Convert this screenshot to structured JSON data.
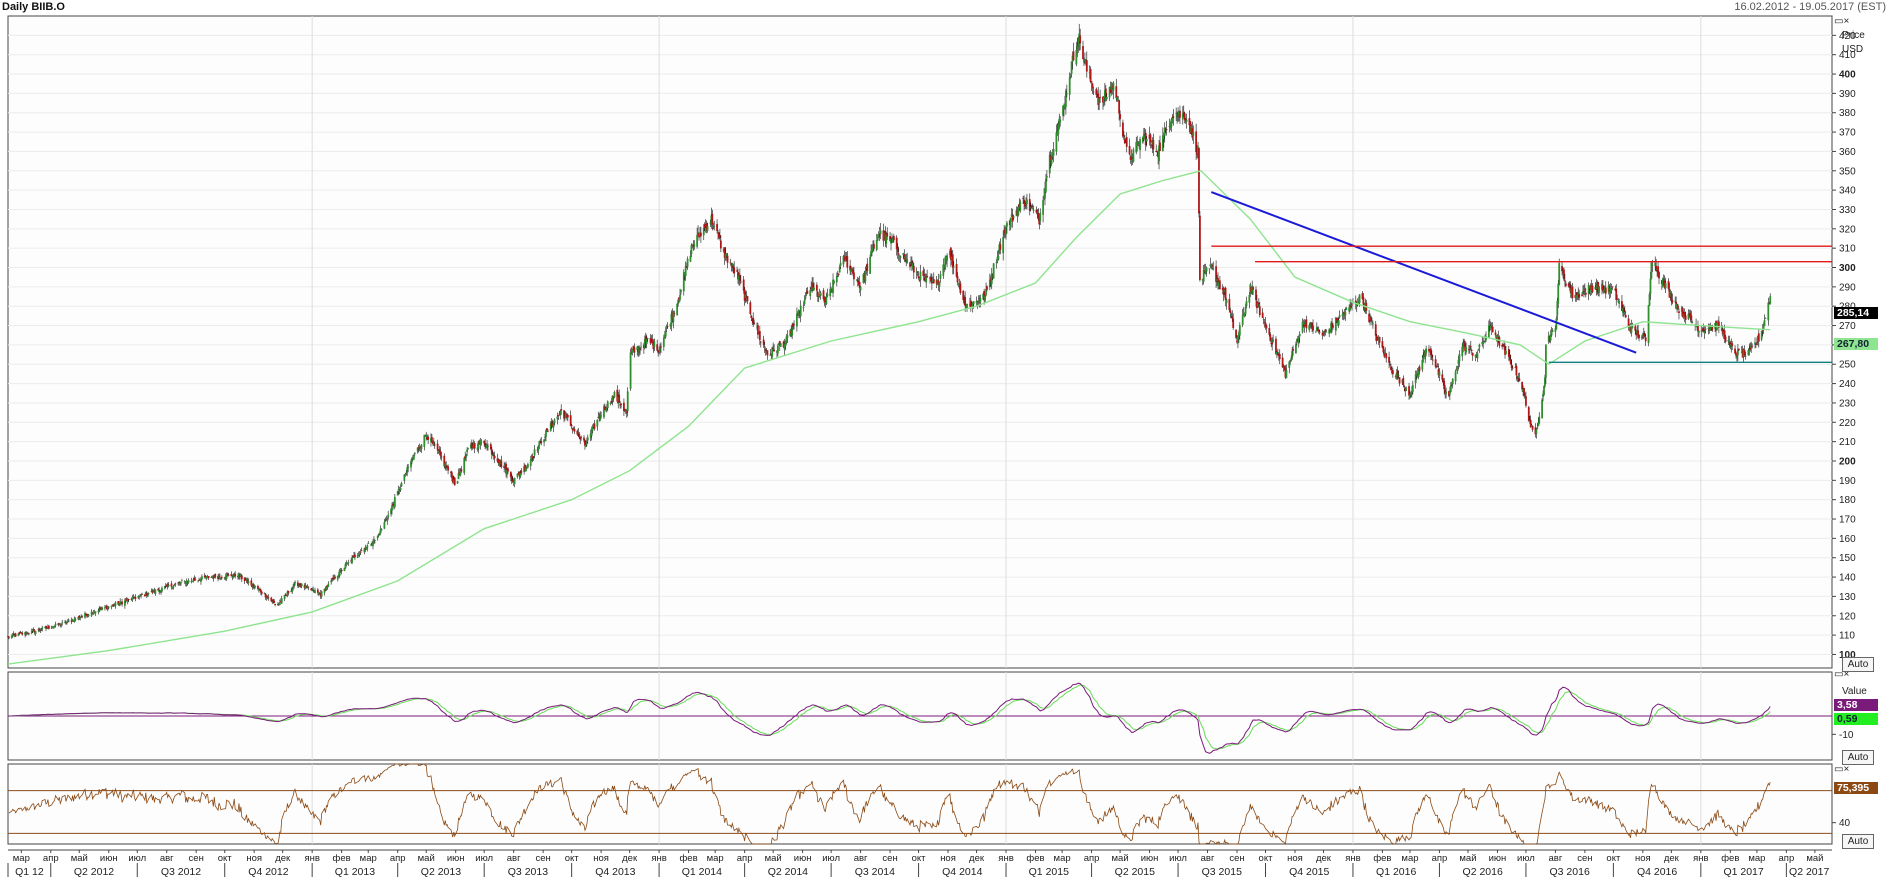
{
  "header": {
    "title": "Daily BIIB.O",
    "date_range": "16.02.2012 - 19.05.2017 (EST)"
  },
  "controls": {
    "auto_label": "Auto",
    "panel_icon": "panel-restore-close-icon"
  },
  "price_axis": {
    "title_line1": "Price",
    "title_line2": "USD"
  },
  "value_axis": {
    "title": "Value"
  },
  "colors": {
    "up_candle": "#2f8f2f",
    "down_candle": "#b01818",
    "ma": "#8fe48f",
    "trendline": "#1a1ad8",
    "resistance": "#e01818",
    "support": "#108080",
    "macd": "#7a1a7a",
    "macd_signal": "#66dd55",
    "rsi": "#8b4a14",
    "rsi_band": "#8b4a14"
  },
  "chart_data": [
    {
      "type": "candlestick",
      "title": "Daily BIIB.O",
      "ylabel": "Price USD",
      "ylim": [
        93,
        430
      ],
      "y_ticks": [
        100,
        110,
        120,
        130,
        140,
        150,
        160,
        170,
        180,
        190,
        200,
        210,
        220,
        230,
        240,
        250,
        260,
        270,
        280,
        290,
        300,
        310,
        320,
        330,
        340,
        350,
        360,
        370,
        380,
        390,
        400,
        410,
        420
      ],
      "y_tick_labels": [
        "100",
        "110",
        "120",
        "130",
        "140",
        "150",
        "160",
        "170",
        "180",
        "190",
        "200",
        "210",
        "220",
        "230",
        "240",
        "250",
        "260",
        "270",
        "280",
        "290",
        "300",
        "310",
        "320",
        "330",
        "340",
        "350",
        "360",
        "370",
        "380",
        "390",
        "400",
        "410",
        "420"
      ],
      "bold_ticks": [
        100,
        200,
        300,
        400
      ],
      "x_range": [
        "2012-02-16",
        "2017-05-19"
      ],
      "close_path": [
        [
          "2012-02-16",
          109
        ],
        [
          "2012-03-15",
          112
        ],
        [
          "2012-04-15",
          116
        ],
        [
          "2012-05-15",
          122
        ],
        [
          "2012-06-15",
          127
        ],
        [
          "2012-07-15",
          132
        ],
        [
          "2012-08-15",
          137
        ],
        [
          "2012-09-15",
          140
        ],
        [
          "2012-10-15",
          141
        ],
        [
          "2012-11-10",
          132
        ],
        [
          "2012-11-25",
          125
        ],
        [
          "2012-12-15",
          137
        ],
        [
          "2013-01-10",
          131
        ],
        [
          "2013-01-25",
          140
        ],
        [
          "2013-02-15",
          151
        ],
        [
          "2013-03-10",
          160
        ],
        [
          "2013-03-25",
          175
        ],
        [
          "2013-04-15",
          200
        ],
        [
          "2013-05-01",
          214
        ],
        [
          "2013-05-15",
          203
        ],
        [
          "2013-06-01",
          188
        ],
        [
          "2013-06-15",
          207
        ],
        [
          "2013-07-01",
          210
        ],
        [
          "2013-08-01",
          190
        ],
        [
          "2013-08-15",
          198
        ],
        [
          "2013-09-01",
          212
        ],
        [
          "2013-09-20",
          226
        ],
        [
          "2013-10-15",
          208
        ],
        [
          "2013-11-01",
          225
        ],
        [
          "2013-11-15",
          234
        ],
        [
          "2013-11-28",
          225
        ],
        [
          "2013-12-01",
          255
        ],
        [
          "2013-12-20",
          262
        ],
        [
          "2014-01-01",
          258
        ],
        [
          "2014-01-20",
          282
        ],
        [
          "2014-02-05",
          312
        ],
        [
          "2014-02-25",
          325
        ],
        [
          "2014-03-10",
          308
        ],
        [
          "2014-03-25",
          295
        ],
        [
          "2014-04-15",
          266
        ],
        [
          "2014-04-25",
          255
        ],
        [
          "2014-05-15",
          262
        ],
        [
          "2014-06-10",
          290
        ],
        [
          "2014-06-25",
          282
        ],
        [
          "2014-07-15",
          305
        ],
        [
          "2014-08-01",
          290
        ],
        [
          "2014-08-20",
          318
        ],
        [
          "2014-09-05",
          312
        ],
        [
          "2014-10-01",
          296
        ],
        [
          "2014-10-20",
          290
        ],
        [
          "2014-11-01",
          310
        ],
        [
          "2014-11-20",
          280
        ],
        [
          "2014-12-10",
          285
        ],
        [
          "2014-12-31",
          320
        ],
        [
          "2015-01-20",
          335
        ],
        [
          "2015-02-05",
          325
        ],
        [
          "2015-02-15",
          355
        ],
        [
          "2015-03-01",
          380
        ],
        [
          "2015-03-10",
          402
        ],
        [
          "2015-03-18",
          420
        ],
        [
          "2015-03-28",
          400
        ],
        [
          "2015-04-10",
          385
        ],
        [
          "2015-04-25",
          395
        ],
        [
          "2015-05-10",
          355
        ],
        [
          "2015-05-25",
          368
        ],
        [
          "2015-06-10",
          360
        ],
        [
          "2015-06-25",
          380
        ],
        [
          "2015-07-10",
          378
        ],
        [
          "2015-07-22",
          360
        ],
        [
          "2015-07-24",
          294
        ],
        [
          "2015-08-05",
          300
        ],
        [
          "2015-08-20",
          285
        ],
        [
          "2015-09-01",
          262
        ],
        [
          "2015-09-15",
          290
        ],
        [
          "2015-10-01",
          270
        ],
        [
          "2015-10-22",
          245
        ],
        [
          "2015-11-10",
          272
        ],
        [
          "2015-12-01",
          265
        ],
        [
          "2015-12-20",
          275
        ],
        [
          "2016-01-10",
          285
        ],
        [
          "2016-01-25",
          265
        ],
        [
          "2016-02-10",
          248
        ],
        [
          "2016-03-01",
          235
        ],
        [
          "2016-03-20",
          260
        ],
        [
          "2016-04-10",
          232
        ],
        [
          "2016-04-25",
          260
        ],
        [
          "2016-05-10",
          255
        ],
        [
          "2016-05-25",
          270
        ],
        [
          "2016-06-10",
          255
        ],
        [
          "2016-06-25",
          242
        ],
        [
          "2016-07-10",
          210
        ],
        [
          "2016-07-21",
          242
        ],
        [
          "2016-07-22",
          262
        ],
        [
          "2016-08-01",
          268
        ],
        [
          "2016-08-05",
          300
        ],
        [
          "2016-08-20",
          285
        ],
        [
          "2016-09-10",
          290
        ],
        [
          "2016-10-01",
          288
        ],
        [
          "2016-10-20",
          268
        ],
        [
          "2016-11-05",
          262
        ],
        [
          "2016-11-10",
          305
        ],
        [
          "2016-11-25",
          290
        ],
        [
          "2016-12-10",
          278
        ],
        [
          "2017-01-01",
          268
        ],
        [
          "2017-01-20",
          270
        ],
        [
          "2017-02-05",
          256
        ],
        [
          "2017-02-20",
          255
        ],
        [
          "2017-03-05",
          265
        ],
        [
          "2017-03-15",
          285.14
        ]
      ],
      "moving_average": [
        [
          "2012-02-16",
          95
        ],
        [
          "2012-06-01",
          102
        ],
        [
          "2012-10-01",
          112
        ],
        [
          "2013-01-01",
          122
        ],
        [
          "2013-04-01",
          138
        ],
        [
          "2013-07-01",
          165
        ],
        [
          "2013-10-01",
          180
        ],
        [
          "2013-12-01",
          195
        ],
        [
          "2014-02-01",
          218
        ],
        [
          "2014-04-01",
          248
        ],
        [
          "2014-07-01",
          262
        ],
        [
          "2014-10-01",
          272
        ],
        [
          "2014-12-01",
          280
        ],
        [
          "2015-02-01",
          292
        ],
        [
          "2015-03-15",
          315
        ],
        [
          "2015-05-01",
          338
        ],
        [
          "2015-06-15",
          345
        ],
        [
          "2015-07-25",
          350
        ],
        [
          "2015-09-15",
          325
        ],
        [
          "2015-11-01",
          295
        ],
        [
          "2016-01-01",
          282
        ],
        [
          "2016-03-01",
          272
        ],
        [
          "2016-05-01",
          266
        ],
        [
          "2016-06-25",
          260
        ],
        [
          "2016-07-25",
          250
        ],
        [
          "2016-09-01",
          262
        ],
        [
          "2016-11-01",
          272
        ],
        [
          "2017-01-01",
          270
        ],
        [
          "2017-03-15",
          267.8
        ]
      ],
      "ma_last_value": 267.8,
      "last_price": 285.14,
      "last_price_label": "285,14",
      "ma_label": "267,80",
      "annotations": [
        {
          "kind": "trendline",
          "from": [
            "2015-08-05",
            339
          ],
          "to": [
            "2016-10-25",
            256
          ]
        },
        {
          "kind": "resistance",
          "from": [
            "2015-08-05",
            311
          ],
          "to": [
            "2017-05-19",
            311
          ]
        },
        {
          "kind": "resistance",
          "from": [
            "2015-09-20",
            303
          ],
          "to": [
            "2017-05-19",
            303
          ]
        },
        {
          "kind": "support",
          "from": [
            "2016-07-25",
            251
          ],
          "to": [
            "2017-05-19",
            251
          ]
        }
      ]
    },
    {
      "type": "line",
      "title": "MACD",
      "ylabel": "Value",
      "ylim": [
        -24,
        24
      ],
      "y_ticks": [
        -10
      ],
      "y_tick_labels": [
        "-10"
      ],
      "macd_label": "3,58",
      "signal_label": "0,59",
      "last_macd": 3.58,
      "last_signal": 0.59
    },
    {
      "type": "line",
      "title": "RSI",
      "ylim": [
        20,
        95
      ],
      "y_ticks": [
        40
      ],
      "y_tick_labels": [
        "40"
      ],
      "bands": [
        70,
        30
      ],
      "last_label": "75,395",
      "last_value": 75.395
    }
  ],
  "time_axis": {
    "months": [
      {
        "d": "2012-03-01",
        "t": "мар"
      },
      {
        "d": "2012-04-01",
        "t": "апр"
      },
      {
        "d": "2012-05-01",
        "t": "май"
      },
      {
        "d": "2012-06-01",
        "t": "июн"
      },
      {
        "d": "2012-07-01",
        "t": "июл"
      },
      {
        "d": "2012-08-01",
        "t": "авг"
      },
      {
        "d": "2012-09-01",
        "t": "сен"
      },
      {
        "d": "2012-10-01",
        "t": "окт"
      },
      {
        "d": "2012-11-01",
        "t": "ноя"
      },
      {
        "d": "2012-12-01",
        "t": "дек"
      },
      {
        "d": "2013-01-01",
        "t": "янв"
      },
      {
        "d": "2013-02-01",
        "t": "фев"
      },
      {
        "d": "2013-03-01",
        "t": "мар"
      },
      {
        "d": "2013-04-01",
        "t": "апр"
      },
      {
        "d": "2013-05-01",
        "t": "май"
      },
      {
        "d": "2013-06-01",
        "t": "июн"
      },
      {
        "d": "2013-07-01",
        "t": "июл"
      },
      {
        "d": "2013-08-01",
        "t": "авг"
      },
      {
        "d": "2013-09-01",
        "t": "сен"
      },
      {
        "d": "2013-10-01",
        "t": "окт"
      },
      {
        "d": "2013-11-01",
        "t": "ноя"
      },
      {
        "d": "2013-12-01",
        "t": "дек"
      },
      {
        "d": "2014-01-01",
        "t": "янв"
      },
      {
        "d": "2014-02-01",
        "t": "фев"
      },
      {
        "d": "2014-03-01",
        "t": "мар"
      },
      {
        "d": "2014-04-01",
        "t": "апр"
      },
      {
        "d": "2014-05-01",
        "t": "май"
      },
      {
        "d": "2014-06-01",
        "t": "июн"
      },
      {
        "d": "2014-07-01",
        "t": "июл"
      },
      {
        "d": "2014-08-01",
        "t": "авг"
      },
      {
        "d": "2014-09-01",
        "t": "сен"
      },
      {
        "d": "2014-10-01",
        "t": "окт"
      },
      {
        "d": "2014-11-01",
        "t": "ноя"
      },
      {
        "d": "2014-12-01",
        "t": "дек"
      },
      {
        "d": "2015-01-01",
        "t": "янв"
      },
      {
        "d": "2015-02-01",
        "t": "фев"
      },
      {
        "d": "2015-03-01",
        "t": "мар"
      },
      {
        "d": "2015-04-01",
        "t": "апр"
      },
      {
        "d": "2015-05-01",
        "t": "май"
      },
      {
        "d": "2015-06-01",
        "t": "июн"
      },
      {
        "d": "2015-07-01",
        "t": "июл"
      },
      {
        "d": "2015-08-01",
        "t": "авг"
      },
      {
        "d": "2015-09-01",
        "t": "сен"
      },
      {
        "d": "2015-10-01",
        "t": "окт"
      },
      {
        "d": "2015-11-01",
        "t": "ноя"
      },
      {
        "d": "2015-12-01",
        "t": "дек"
      },
      {
        "d": "2016-01-01",
        "t": "янв"
      },
      {
        "d": "2016-02-01",
        "t": "фев"
      },
      {
        "d": "2016-03-01",
        "t": "мар"
      },
      {
        "d": "2016-04-01",
        "t": "апр"
      },
      {
        "d": "2016-05-01",
        "t": "май"
      },
      {
        "d": "2016-06-01",
        "t": "июн"
      },
      {
        "d": "2016-07-01",
        "t": "июл"
      },
      {
        "d": "2016-08-01",
        "t": "авг"
      },
      {
        "d": "2016-09-01",
        "t": "сен"
      },
      {
        "d": "2016-10-01",
        "t": "окт"
      },
      {
        "d": "2016-11-01",
        "t": "ноя"
      },
      {
        "d": "2016-12-01",
        "t": "дек"
      },
      {
        "d": "2017-01-01",
        "t": "янв"
      },
      {
        "d": "2017-02-01",
        "t": "фев"
      },
      {
        "d": "2017-03-01",
        "t": "мар"
      },
      {
        "d": "2017-04-01",
        "t": "апр"
      },
      {
        "d": "2017-05-01",
        "t": "май"
      }
    ],
    "quarters": [
      {
        "d": "2012-02-16",
        "t": "Q1 12"
      },
      {
        "d": "2012-04-01",
        "t": "Q2 2012"
      },
      {
        "d": "2012-07-01",
        "t": "Q3 2012"
      },
      {
        "d": "2012-10-01",
        "t": "Q4 2012"
      },
      {
        "d": "2013-01-01",
        "t": "Q1 2013"
      },
      {
        "d": "2013-04-01",
        "t": "Q2 2013"
      },
      {
        "d": "2013-07-01",
        "t": "Q3 2013"
      },
      {
        "d": "2013-10-01",
        "t": "Q4 2013"
      },
      {
        "d": "2014-01-01",
        "t": "Q1 2014"
      },
      {
        "d": "2014-04-01",
        "t": "Q2 2014"
      },
      {
        "d": "2014-07-01",
        "t": "Q3 2014"
      },
      {
        "d": "2014-10-01",
        "t": "Q4 2014"
      },
      {
        "d": "2015-01-01",
        "t": "Q1 2015"
      },
      {
        "d": "2015-04-01",
        "t": "Q2 2015"
      },
      {
        "d": "2015-07-01",
        "t": "Q3 2015"
      },
      {
        "d": "2015-10-01",
        "t": "Q4 2015"
      },
      {
        "d": "2016-01-01",
        "t": "Q1 2016"
      },
      {
        "d": "2016-04-01",
        "t": "Q2 2016"
      },
      {
        "d": "2016-07-01",
        "t": "Q3 2016"
      },
      {
        "d": "2016-10-01",
        "t": "Q4 2016"
      },
      {
        "d": "2017-01-01",
        "t": "Q1 2017"
      },
      {
        "d": "2017-04-01",
        "t": "Q2 2017"
      }
    ]
  }
}
